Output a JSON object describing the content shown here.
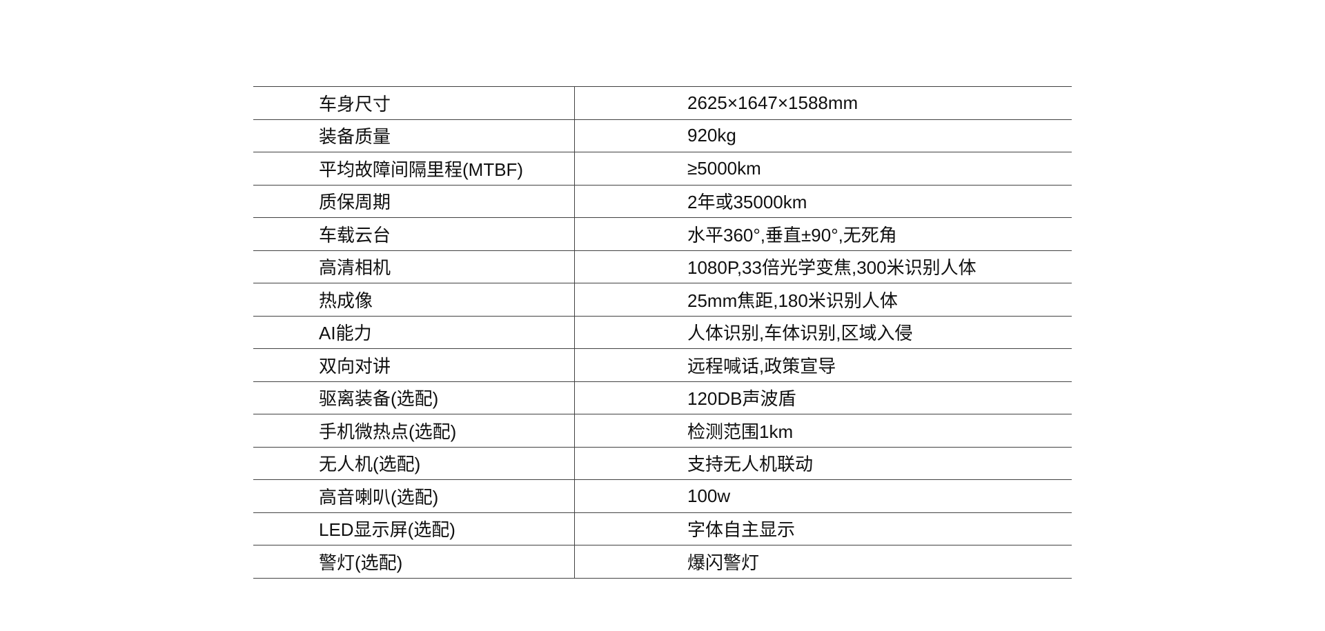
{
  "table": {
    "rows": [
      {
        "label": "车身尺寸",
        "value": "2625×1647×1588mm"
      },
      {
        "label": "装备质量",
        "value": "920kg"
      },
      {
        "label": "平均故障间隔里程(MTBF)",
        "value": "≥5000km"
      },
      {
        "label": "质保周期",
        "value": "2年或35000km"
      },
      {
        "label": "车载云台",
        "value": "水平360°,垂直±90°,无死角"
      },
      {
        "label": "高清相机",
        "value": "1080P,33倍光学变焦,300米识别人体"
      },
      {
        "label": "热成像",
        "value": "25mm焦距,180米识别人体"
      },
      {
        "label": "AI能力",
        "value": "人体识别,车体识别,区域入侵"
      },
      {
        "label": "双向对讲",
        "value": "远程喊话,政策宣导"
      },
      {
        "label": "驱离装备(选配)",
        "value": "120DB声波盾"
      },
      {
        "label": "手机微热点(选配)",
        "value": "检测范围1km"
      },
      {
        "label": "无人机(选配)",
        "value": "支持无人机联动"
      },
      {
        "label": "高音喇叭(选配)",
        "value": "100w"
      },
      {
        "label": "LED显示屏(选配)",
        "value": "字体自主显示"
      },
      {
        "label": "警灯(选配)",
        "value": "爆闪警灯"
      }
    ]
  },
  "colors": {
    "background": "#ffffff",
    "text": "#101010",
    "rule": "#414141"
  }
}
